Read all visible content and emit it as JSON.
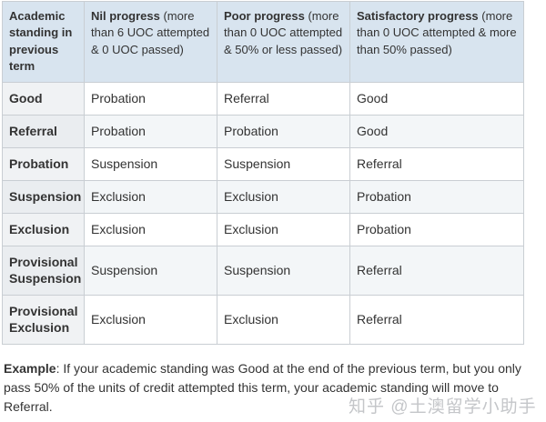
{
  "table": {
    "headers": [
      {
        "bold": "Academic standing in previous term",
        "rest": ""
      },
      {
        "bold": "Nil progress",
        "rest": " (more than 6 UOC attempted & 0 UOC passed)"
      },
      {
        "bold": "Poor progress",
        "rest": " (more than 0 UOC attempted & 50% or less passed)"
      },
      {
        "bold": "Satisfactory progress",
        "rest": " (more than 0 UOC attempted & more than 50% passed)"
      }
    ],
    "rows": [
      {
        "standing": "Good",
        "nil": "Probation",
        "poor": "Referral",
        "satisfactory": "Good"
      },
      {
        "standing": "Referral",
        "nil": "Probation",
        "poor": "Probation",
        "satisfactory": "Good"
      },
      {
        "standing": "Probation",
        "nil": "Suspension",
        "poor": "Suspension",
        "satisfactory": "Referral"
      },
      {
        "standing": "Suspension",
        "nil": "Exclusion",
        "poor": "Exclusion",
        "satisfactory": "Probation"
      },
      {
        "standing": "Exclusion",
        "nil": "Exclusion",
        "poor": "Exclusion",
        "satisfactory": "Probation"
      },
      {
        "standing": "Provisional Suspension",
        "nil": "Suspension",
        "poor": "Suspension",
        "satisfactory": "Referral"
      },
      {
        "standing": "Provisional Exclusion",
        "nil": "Exclusion",
        "poor": "Exclusion",
        "satisfactory": "Referral"
      }
    ]
  },
  "example": {
    "label": "Example",
    "text": ": If your academic standing was Good at the end of the previous term, but you only pass 50% of the units of credit attempted this term, your academic standing will move to Referral."
  },
  "watermark": "知乎 @土澳留学小助手",
  "colors": {
    "header-bg": "#d8e4ef",
    "row-header-bg": "#f0f2f4",
    "row-header-bg-even": "#eaedf0",
    "stripe-bg": "#f3f6f8",
    "border": "#c9ced3",
    "text": "#333333",
    "watermark": "#c4c6c9"
  }
}
